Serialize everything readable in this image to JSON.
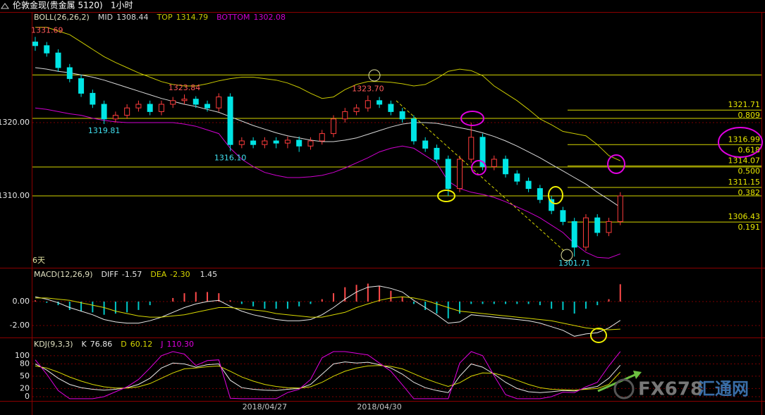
{
  "header": {
    "title": "伦敦金现(贵金属 5120)",
    "period": "1小时"
  },
  "watermark": {
    "brand": "FX678",
    "name": "汇通网"
  },
  "chart_data": [
    {
      "type": "candlestick",
      "title": "BOLL(26,26,2)",
      "period_label": "6天",
      "up_color": "#ff3c3c",
      "down_color": "#00e5e5",
      "ylim": [
        1300.19,
        1335
      ],
      "yticks": [
        {
          "value": 1320,
          "label": "1320.00"
        },
        {
          "value": 1310,
          "label": "1310.00"
        }
      ],
      "grid": true,
      "open": [
        1331,
        1330.5,
        1329.5,
        1327.5,
        1326,
        1324,
        1322.5,
        1320.5,
        1321,
        1322,
        1322.5,
        1321.5,
        1322.5,
        1323,
        1323.2,
        1322.5,
        1322,
        1323.5,
        1317,
        1317.5,
        1317,
        1317.5,
        1317.2,
        1317.6,
        1316.8,
        1317.5,
        1318.5,
        1320.5,
        1321.5,
        1322,
        1323,
        1322.5,
        1321.5,
        1320.5,
        1317.5,
        1316.5,
        1315,
        1311,
        1315,
        1318,
        1314,
        1315,
        1313,
        1312,
        1311,
        1309.5,
        1308,
        1306.5,
        1303,
        1307,
        1305,
        1306.5
      ],
      "high": [
        1331.69,
        1331,
        1330,
        1328,
        1326.5,
        1324.5,
        1323,
        1321.5,
        1322.5,
        1323,
        1323,
        1323,
        1323.5,
        1323.84,
        1323.6,
        1323,
        1324,
        1324,
        1318,
        1318,
        1318,
        1318,
        1318.1,
        1318.1,
        1318,
        1319,
        1321,
        1322,
        1322.5,
        1323.7,
        1323.5,
        1323,
        1322,
        1321,
        1318,
        1317,
        1315.5,
        1315.5,
        1320,
        1318.5,
        1315.5,
        1315.5,
        1313.5,
        1312.5,
        1311.5,
        1310,
        1308.5,
        1307,
        1307.5,
        1307.5,
        1307,
        1310.5
      ],
      "low": [
        1329.8,
        1329,
        1327,
        1325.5,
        1323.5,
        1322,
        1319.81,
        1320,
        1320.5,
        1321.5,
        1321,
        1321,
        1322,
        1322.5,
        1322,
        1321.5,
        1321.5,
        1316.1,
        1316.5,
        1316.5,
        1316.5,
        1316.5,
        1316.5,
        1316,
        1316.3,
        1317,
        1318,
        1320,
        1321,
        1321.5,
        1322,
        1321,
        1320,
        1317,
        1316,
        1314.5,
        1310,
        1310.5,
        1314.5,
        1313.5,
        1313.5,
        1312.5,
        1311.5,
        1310.5,
        1309,
        1307.5,
        1306,
        1301.71,
        1302.5,
        1304.5,
        1304.5,
        1306
      ],
      "close": [
        1330.5,
        1329.5,
        1327.5,
        1326,
        1324,
        1322.5,
        1320.5,
        1321,
        1322,
        1322.5,
        1321.5,
        1322.5,
        1323,
        1323.2,
        1322.5,
        1322,
        1323.5,
        1317,
        1317.5,
        1317,
        1317.5,
        1317.2,
        1317.6,
        1316.8,
        1317.5,
        1318.5,
        1320.5,
        1321.5,
        1322,
        1323,
        1322.5,
        1321.5,
        1320.5,
        1317.5,
        1316.5,
        1315,
        1311,
        1315,
        1318,
        1314,
        1315,
        1313,
        1312,
        1311,
        1309.5,
        1308,
        1306.5,
        1303,
        1307,
        1305,
        1306.5,
        1310
      ],
      "series": [
        {
          "name": "MID",
          "color": "#d8d8d8",
          "values": [
            1327.5,
            1327.3,
            1327,
            1326.8,
            1326.5,
            1326.2,
            1325.8,
            1325.3,
            1324.8,
            1324.3,
            1323.8,
            1323.3,
            1322.9,
            1322.5,
            1322.2,
            1321.8,
            1321.4,
            1320.8,
            1320.2,
            1319.6,
            1319.1,
            1318.6,
            1318.2,
            1317.9,
            1317.6,
            1317.4,
            1317.4,
            1317.6,
            1317.9,
            1318.4,
            1318.9,
            1319.4,
            1319.8,
            1320,
            1320,
            1319.9,
            1319.6,
            1319.3,
            1319,
            1318.6,
            1318.1,
            1317.5,
            1316.8,
            1316,
            1315.2,
            1314.3,
            1313.4,
            1312.5,
            1311.6,
            1310.5,
            1309.5,
            1308.44
          ]
        },
        {
          "name": "TOP",
          "color": "#c8c800",
          "values": [
            1333,
            1333,
            1332.5,
            1332,
            1331,
            1330,
            1329,
            1328.2,
            1327.5,
            1326.8,
            1326.2,
            1325.6,
            1325.2,
            1325,
            1325,
            1325.3,
            1325.7,
            1326,
            1326.2,
            1326.2,
            1326,
            1325.8,
            1325.4,
            1324.8,
            1324,
            1323.3,
            1323.5,
            1324.5,
            1325.2,
            1325.6,
            1325.6,
            1325.5,
            1325.3,
            1325,
            1325.2,
            1326,
            1327,
            1327.3,
            1327.1,
            1326.4,
            1325,
            1324,
            1323,
            1321.8,
            1320.5,
            1319.7,
            1318.8,
            1318.5,
            1318.2,
            1317,
            1315.5,
            1314.79
          ]
        },
        {
          "name": "BOTTOM",
          "color": "#d000d0",
          "values": [
            1322,
            1321.8,
            1321.5,
            1321.2,
            1321,
            1320.6,
            1320.3,
            1320.1,
            1320,
            1320,
            1320,
            1320,
            1320,
            1319.8,
            1319.5,
            1319,
            1318.5,
            1316.5,
            1315,
            1314,
            1313.2,
            1312.8,
            1312.5,
            1312.5,
            1312.6,
            1312.8,
            1313.2,
            1313.8,
            1314.5,
            1315.2,
            1316,
            1316.5,
            1316.8,
            1316.5,
            1315.5,
            1314.5,
            1312,
            1311,
            1310.5,
            1310.2,
            1309.8,
            1309.2,
            1308.5,
            1307.8,
            1307,
            1306,
            1305,
            1303.5,
            1302.3,
            1301.6,
            1301.5,
            1302.08
          ]
        }
      ],
      "levels": [
        1326.5,
        1320.58,
        1313.94,
        1310
      ],
      "level_color": "#d4d400",
      "fib": [
        {
          "value": 1321.71,
          "ratio": 0.809
        },
        {
          "value": 1316.99,
          "ratio": 0.618
        },
        {
          "value": 1314.07,
          "ratio": {
            "value": 0.5,
            "label": "0.500"
          }
        },
        {
          "value": 1311.15,
          "ratio": 0.382
        },
        {
          "value": 1306.43,
          "ratio": 0.191
        }
      ],
      "annotations": [
        1331.69,
        1319.81,
        {
          "value": 1316.1,
          "label": "1316.10"
        },
        1323.84,
        {
          "value": 1323.7,
          "label": "1323.70"
        },
        1301.71
      ]
    },
    {
      "type": "macd",
      "title": "MACD(12,26,9)",
      "ylim": [
        -2.94,
        2.65
      ],
      "yticks": [
        {
          "value": 0,
          "label": "0.00"
        },
        {
          "value": -2,
          "label": "-2.00"
        }
      ],
      "grid": true,
      "series": [
        {
          "name": "DIFF",
          "color": "#e8e8e8",
          "values": [
            0.4,
            0.2,
            -0.1,
            -0.5,
            -0.8,
            -1.1,
            -1.5,
            -1.7,
            -1.8,
            -1.8,
            -1.6,
            -1.3,
            -0.9,
            -0.5,
            -0.2,
            0,
            0.1,
            -0.4,
            -0.8,
            -1.1,
            -1.3,
            -1.5,
            -1.6,
            -1.6,
            -1.5,
            -1.1,
            -0.5,
            0.2,
            0.8,
            1.2,
            1.3,
            1.1,
            0.8,
            0.1,
            -0.5,
            -1.1,
            -1.8,
            -1.7,
            -1.1,
            -1.2,
            -1.3,
            -1.4,
            -1.5,
            -1.6,
            -1.8,
            -2.1,
            -2.4,
            -2.9,
            -2.7,
            -2.6,
            -2.2,
            -1.57
          ]
        },
        {
          "name": "DEA",
          "color": "#d8d800",
          "values": [
            0.3,
            0.3,
            0.2,
            0.1,
            -0.1,
            -0.3,
            -0.5,
            -0.8,
            -1.0,
            -1.2,
            -1.3,
            -1.3,
            -1.2,
            -1.1,
            -0.9,
            -0.7,
            -0.5,
            -0.5,
            -0.6,
            -0.7,
            -0.8,
            -1.0,
            -1.1,
            -1.2,
            -1.3,
            -1.3,
            -1.1,
            -0.9,
            -0.5,
            -0.2,
            0.1,
            0.3,
            0.4,
            0.3,
            0.1,
            -0.2,
            -0.5,
            -0.8,
            -0.9,
            -1.0,
            -1.1,
            -1.2,
            -1.3,
            -1.4,
            -1.5,
            -1.6,
            -1.8,
            -2.0,
            -2.2,
            -2.3,
            -2.35,
            -2.3
          ],
          "value_labels": [
            null,
            null,
            null,
            null,
            null,
            null,
            null,
            null,
            null,
            null,
            null,
            null,
            null,
            null,
            null,
            null,
            null,
            null,
            null,
            null,
            null,
            null,
            null,
            null,
            null,
            null,
            null,
            null,
            null,
            null,
            null,
            null,
            null,
            null,
            null,
            null,
            null,
            null,
            null,
            null,
            null,
            null,
            null,
            null,
            null,
            null,
            null,
            null,
            null,
            null,
            null,
            "-2.30"
          ]
        }
      ],
      "histogram": {
        "up_color": "#ff4a4a",
        "down_color": "#00c8c8",
        "values": [
          0.1,
          -0.1,
          -0.3,
          -0.7,
          -0.8,
          -0.9,
          -1.1,
          -1,
          -0.9,
          -0.7,
          -0.3,
          0,
          0.3,
          0.7,
          0.8,
          0.8,
          0.7,
          0.1,
          -0.2,
          -0.4,
          -0.6,
          -0.6,
          -0.6,
          -0.4,
          -0.2,
          0.2,
          0.7,
          1.2,
          1.4,
          1.5,
          1.3,
          0.9,
          0.4,
          -0.2,
          -0.7,
          -1,
          -1.4,
          -1,
          -0.2,
          -0.2,
          -0.2,
          -0.2,
          -0.2,
          -0.2,
          -0.3,
          -0.6,
          -0.7,
          -1,
          -0.6,
          -0.3,
          0.2,
          1.45
        ]
      }
    },
    {
      "type": "kdj",
      "title": "KDJ(9,3,3)",
      "ylim": [
        -8.6,
        141
      ],
      "yticks": [
        0,
        20,
        50,
        80,
        100
      ],
      "grid": true,
      "categories": [
        null,
        null,
        null,
        null,
        null,
        null,
        null,
        null,
        null,
        null,
        null,
        null,
        null,
        null,
        null,
        null,
        null,
        null,
        null,
        null,
        "2018/04/27",
        null,
        null,
        null,
        null,
        null,
        null,
        null,
        null,
        null,
        "2018/04/30",
        null,
        null,
        null,
        null,
        null,
        null,
        null,
        null,
        null,
        null,
        null,
        null,
        null,
        null,
        null,
        null,
        null,
        null,
        null,
        null,
        null
      ],
      "series": [
        {
          "name": "K",
          "color": "#e8e8e8",
          "values": [
            80,
            65,
            45,
            30,
            22,
            18,
            16,
            18,
            22,
            30,
            45,
            70,
            82,
            80,
            72,
            78,
            80,
            40,
            22,
            18,
            16,
            15,
            18,
            20,
            30,
            55,
            80,
            85,
            82,
            84,
            78,
            70,
            55,
            35,
            22,
            15,
            10,
            50,
            80,
            72,
            55,
            35,
            20,
            12,
            10,
            12,
            15,
            14,
            20,
            25,
            45,
            76.86
          ]
        },
        {
          "name": "D",
          "color": "#d8d800",
          "values": [
            75,
            70,
            60,
            48,
            38,
            30,
            24,
            21,
            21,
            24,
            32,
            45,
            58,
            68,
            70,
            73,
            75,
            62,
            48,
            38,
            30,
            25,
            22,
            21,
            24,
            35,
            50,
            62,
            70,
            75,
            76,
            74,
            68,
            56,
            44,
            34,
            25,
            34,
            50,
            58,
            57,
            50,
            40,
            30,
            22,
            18,
            17,
            16,
            18,
            20,
            30,
            60.12
          ]
        },
        {
          "name": "J",
          "color": "#e000e0",
          "values": [
            90,
            55,
            15,
            -5,
            -5,
            -5,
            0,
            12,
            24,
            42,
            70,
            100,
            110,
            104,
            76,
            88,
            90,
            -4,
            -5,
            -5,
            -5,
            -5,
            10,
            18,
            42,
            95,
            110,
            110,
            106,
            102,
            82,
            62,
            29,
            -5,
            -5,
            -5,
            -5,
            82,
            110,
            100,
            51,
            5,
            -5,
            -5,
            -5,
            0,
            11,
            10,
            24,
            35,
            75,
            110.3
          ],
          "value_labels": [
            null,
            null,
            null,
            null,
            null,
            null,
            null,
            null,
            null,
            null,
            null,
            null,
            null,
            null,
            null,
            null,
            null,
            null,
            null,
            null,
            null,
            null,
            null,
            null,
            null,
            null,
            null,
            null,
            null,
            null,
            null,
            null,
            null,
            null,
            null,
            null,
            null,
            null,
            null,
            null,
            null,
            null,
            null,
            null,
            null,
            null,
            null,
            null,
            null,
            null,
            null,
            "110.30"
          ]
        }
      ]
    }
  ]
}
